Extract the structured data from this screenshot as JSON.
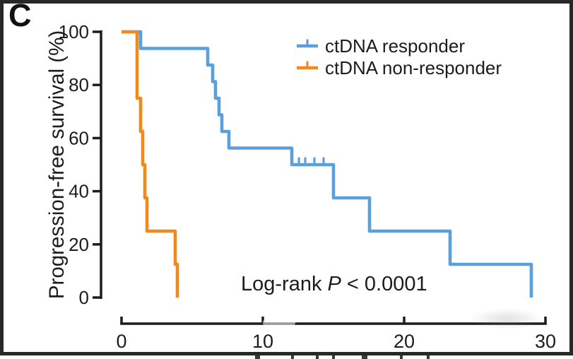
{
  "panel_label": "C",
  "figure": {
    "ylabel": "Progression-free survival (%)",
    "annotation": {
      "prefix": "Log-rank ",
      "italic_var": "P",
      "suffix": " < 0.0001"
    }
  },
  "legend": {
    "items": [
      {
        "label": "ctDNA responder",
        "color": "#5b9fdd",
        "marker": "line-with-censor-tick"
      },
      {
        "label": "ctDNA non-responder",
        "color": "#f08a1d",
        "marker": "line-with-censor-tick"
      }
    ]
  },
  "chart_data": {
    "type": "line",
    "variant": "kaplan_meier_step",
    "title": "",
    "xlabel": "",
    "ylabel": "Progression-free survival (%)",
    "xlim": [
      0,
      30
    ],
    "ylim": [
      0,
      100
    ],
    "x_ticks": [
      "0",
      "10",
      "20",
      "30"
    ],
    "y_ticks": [
      "100",
      "80",
      "60",
      "40",
      "20",
      "0"
    ],
    "grid": false,
    "legend_position": "top-right",
    "annotation": "Log-rank P < 0.0001",
    "axis_color": "#1c1c1c",
    "series": [
      {
        "name": "ctDNA responder",
        "color": "#5b9fdd",
        "steps": [
          [
            0,
            100
          ],
          [
            1.35,
            93.75
          ],
          [
            6.1,
            87.5
          ],
          [
            6.45,
            81.25
          ],
          [
            6.65,
            75
          ],
          [
            6.9,
            68.75
          ],
          [
            7.1,
            62.5
          ],
          [
            7.6,
            56.25
          ],
          [
            12.05,
            50
          ],
          [
            15.0,
            37.5
          ],
          [
            17.55,
            25
          ],
          [
            23.25,
            12.5
          ],
          [
            29.0,
            0
          ]
        ],
        "censor_marks": [
          [
            12.55,
            50
          ],
          [
            13.0,
            50
          ],
          [
            13.65,
            50
          ],
          [
            14.3,
            50
          ]
        ]
      },
      {
        "name": "ctDNA non-responder",
        "color": "#f08a1d",
        "steps": [
          [
            0,
            100
          ],
          [
            1.1,
            75
          ],
          [
            1.35,
            62.5
          ],
          [
            1.5,
            50
          ],
          [
            1.65,
            37.5
          ],
          [
            1.8,
            25
          ],
          [
            3.8,
            12.5
          ],
          [
            3.95,
            0
          ]
        ],
        "censor_marks": []
      }
    ]
  }
}
